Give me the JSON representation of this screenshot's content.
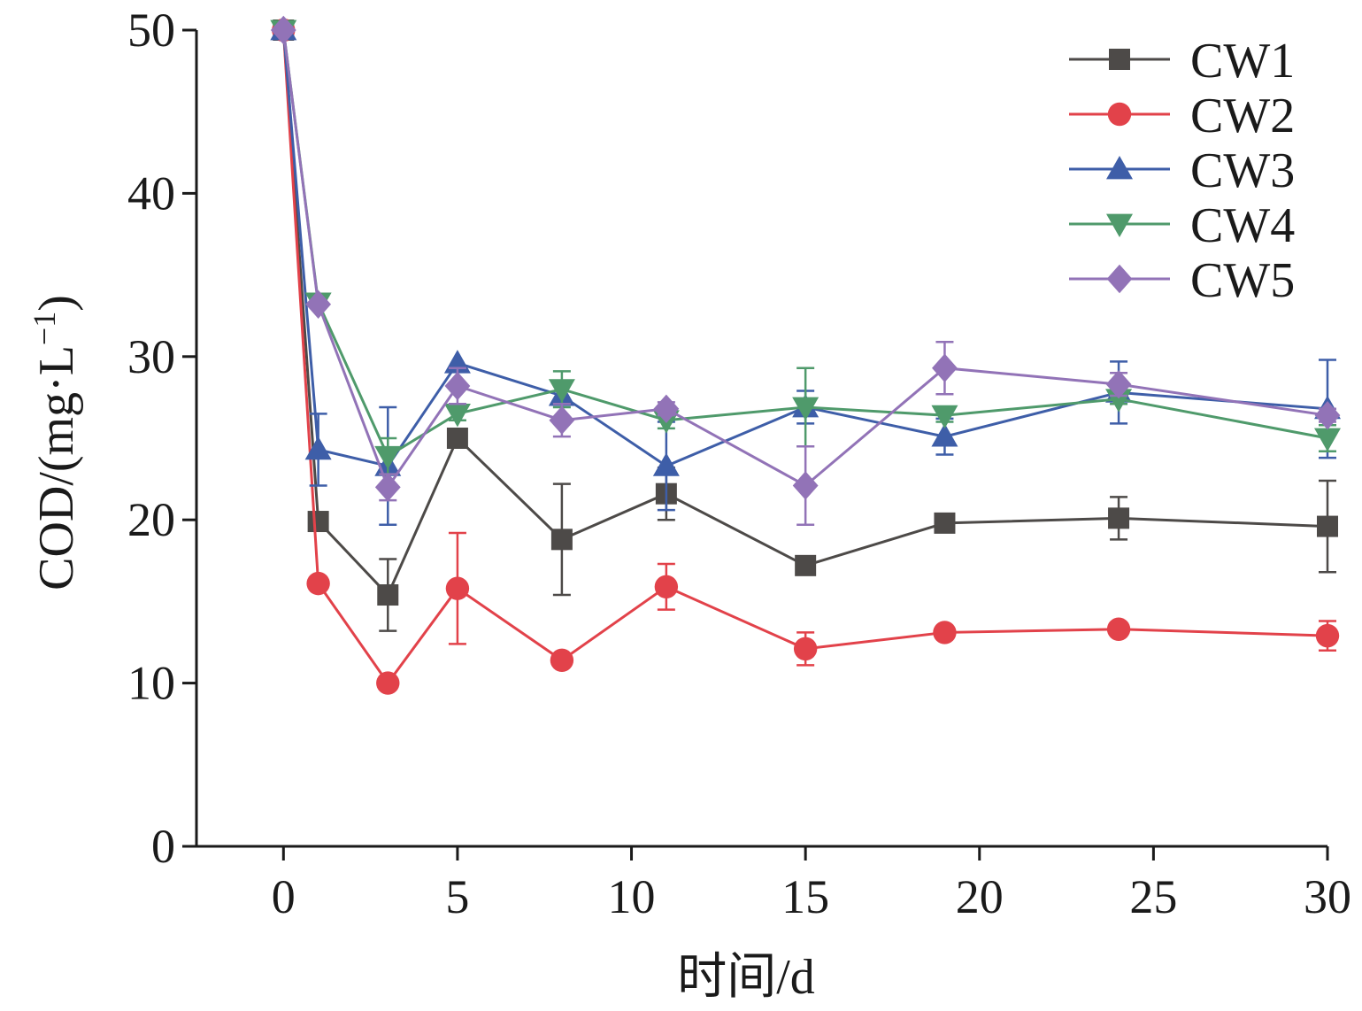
{
  "chart_data": {
    "type": "line",
    "xlabel": "时间/d",
    "ylabel_main": "COD/(mg·L",
    "ylabel_sup": "−1",
    "ylabel_close": ")",
    "xlim": [
      -2.5,
      30
    ],
    "ylim": [
      0,
      50
    ],
    "xticks": [
      0,
      5,
      10,
      15,
      20,
      25,
      30
    ],
    "yticks": [
      0,
      10,
      20,
      30,
      40,
      50
    ],
    "grid": false,
    "legend_position": "top-right",
    "x": [
      0,
      1,
      3,
      5,
      8,
      11,
      15,
      19,
      24,
      30
    ],
    "series": [
      {
        "name": "CW1",
        "color": "#4d4a48",
        "marker": "square",
        "values": [
          50,
          19.9,
          15.4,
          25.0,
          18.8,
          21.6,
          17.2,
          19.8,
          20.1,
          19.6
        ],
        "errors": [
          0,
          0,
          2.2,
          0,
          3.4,
          1.6,
          0.4,
          0.5,
          1.3,
          2.8
        ]
      },
      {
        "name": "CW2",
        "color": "#e2424a",
        "marker": "circle",
        "values": [
          50,
          16.1,
          10.0,
          15.8,
          11.4,
          15.9,
          12.1,
          13.1,
          13.3,
          12.9
        ],
        "errors": [
          0,
          0,
          0,
          3.4,
          0,
          1.4,
          1.0,
          0.2,
          0.2,
          0.9
        ]
      },
      {
        "name": "CW3",
        "color": "#3e5ea8",
        "marker": "triangle-up",
        "values": [
          50,
          24.3,
          23.3,
          29.6,
          27.6,
          23.3,
          26.9,
          25.1,
          27.8,
          26.8
        ],
        "errors": [
          0,
          2.2,
          3.6,
          0,
          0,
          2.7,
          1.0,
          1.1,
          1.9,
          3.0
        ]
      },
      {
        "name": "CW4",
        "color": "#4f9a6b",
        "marker": "triangle-down",
        "values": [
          50,
          33.3,
          23.9,
          26.5,
          28.0,
          26.1,
          26.9,
          26.4,
          27.4,
          25.0
        ],
        "errors": [
          0,
          0,
          1.1,
          0.4,
          1.1,
          0.5,
          2.4,
          0.4,
          0.3,
          0.8
        ]
      },
      {
        "name": "CW5",
        "color": "#9273b7",
        "marker": "diamond",
        "values": [
          50,
          33.2,
          22.0,
          28.2,
          26.1,
          26.8,
          22.1,
          29.3,
          28.3,
          26.4
        ],
        "errors": [
          0,
          0,
          0.8,
          1.1,
          1.0,
          0.4,
          2.4,
          1.6,
          0.7,
          0.4
        ]
      }
    ]
  }
}
